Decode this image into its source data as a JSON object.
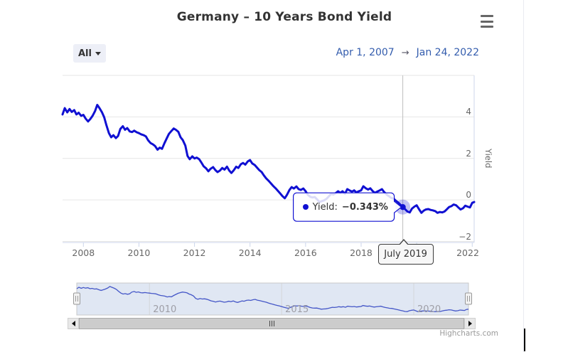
{
  "header": {
    "title": "Germany – 10 Years Bond Yield"
  },
  "range_selector": {
    "dropdown_label": "All",
    "from_date": "Apr 1, 2007",
    "arrow": "→",
    "to_date": "Jan 24, 2022"
  },
  "tooltip": {
    "label": "Yield:",
    "value": "−0.343%"
  },
  "crosshair_label": "July 2019",
  "credit": "Highcharts.com",
  "colors": {
    "series": "#1010d2",
    "nav_series": "#4456c7",
    "nav_mask": "rgba(102,133,194,0.2)",
    "grid": "#e6e6e6",
    "axis_line": "#ccd6eb",
    "crosshair": "#bfbfbf",
    "halo_opacity": "0.25",
    "tooltip_border": "#1010d2",
    "label_color": "#666666",
    "date_color": "#335cad"
  },
  "chart_data": {
    "type": "line",
    "title": "Germany – 10 Years Bond Yield",
    "series_name": "Yield",
    "legend": "off",
    "grid": "horizontal-only",
    "yaxis": {
      "title": "Yield",
      "position": "right",
      "range": [
        -2.05,
        6.0
      ],
      "gridline_values": [
        6,
        4,
        2,
        0,
        -2
      ],
      "ticks": [
        {
          "value": 4,
          "label": "4"
        },
        {
          "value": 2,
          "label": "2"
        },
        {
          "value": 0,
          "label": "0"
        },
        {
          "value": -2,
          "label": "−2"
        }
      ]
    },
    "xaxis": {
      "range_years": [
        2007.25,
        2022.07
      ],
      "tick_years": [
        2008,
        2010,
        2012,
        2014,
        2016,
        2018,
        2020,
        2022
      ],
      "tick_labels": [
        "2008",
        "2010",
        "2012",
        "2014",
        "2016",
        "2018",
        "2020",
        "2022"
      ]
    },
    "hover_point": {
      "x": 2019.5,
      "y": -0.343,
      "x_label": "July 2019",
      "value_label": "−0.343%"
    },
    "navigator": {
      "tick_years": [
        2010,
        2015,
        2020
      ],
      "labels": [
        "2010",
        "2015",
        "2020"
      ],
      "range": "all"
    },
    "x": [
      2007.25,
      2007.33,
      2007.42,
      2007.5,
      2007.58,
      2007.67,
      2007.75,
      2007.83,
      2007.92,
      2008.0,
      2008.08,
      2008.17,
      2008.25,
      2008.33,
      2008.42,
      2008.5,
      2008.58,
      2008.67,
      2008.75,
      2008.83,
      2008.92,
      2009.0,
      2009.08,
      2009.17,
      2009.25,
      2009.33,
      2009.42,
      2009.5,
      2009.58,
      2009.67,
      2009.75,
      2009.83,
      2009.92,
      2010.0,
      2010.08,
      2010.17,
      2010.25,
      2010.33,
      2010.42,
      2010.5,
      2010.58,
      2010.67,
      2010.75,
      2010.83,
      2010.92,
      2011.0,
      2011.08,
      2011.17,
      2011.25,
      2011.33,
      2011.42,
      2011.5,
      2011.58,
      2011.67,
      2011.75,
      2011.83,
      2011.92,
      2012.0,
      2012.08,
      2012.17,
      2012.25,
      2012.33,
      2012.42,
      2012.5,
      2012.58,
      2012.67,
      2012.75,
      2012.83,
      2012.92,
      2013.0,
      2013.08,
      2013.17,
      2013.25,
      2013.33,
      2013.42,
      2013.5,
      2013.58,
      2013.67,
      2013.75,
      2013.83,
      2013.92,
      2014.0,
      2014.08,
      2014.17,
      2014.25,
      2014.33,
      2014.42,
      2014.5,
      2014.58,
      2014.67,
      2014.75,
      2014.83,
      2014.92,
      2015.0,
      2015.08,
      2015.17,
      2015.25,
      2015.33,
      2015.42,
      2015.5,
      2015.58,
      2015.67,
      2015.75,
      2015.83,
      2015.92,
      2016.0,
      2016.08,
      2016.17,
      2016.25,
      2016.33,
      2016.42,
      2016.5,
      2016.58,
      2016.67,
      2016.75,
      2016.83,
      2016.92,
      2017.0,
      2017.08,
      2017.17,
      2017.25,
      2017.33,
      2017.42,
      2017.5,
      2017.58,
      2017.67,
      2017.75,
      2017.83,
      2017.92,
      2018.0,
      2018.08,
      2018.17,
      2018.25,
      2018.33,
      2018.42,
      2018.5,
      2018.58,
      2018.67,
      2018.75,
      2018.83,
      2018.92,
      2019.0,
      2019.08,
      2019.17,
      2019.25,
      2019.33,
      2019.42,
      2019.5,
      2019.58,
      2019.67,
      2019.75,
      2019.83,
      2019.92,
      2020.0,
      2020.08,
      2020.17,
      2020.25,
      2020.33,
      2020.42,
      2020.5,
      2020.58,
      2020.67,
      2020.75,
      2020.83,
      2020.92,
      2021.0,
      2021.08,
      2021.17,
      2021.25,
      2021.33,
      2021.42,
      2021.5,
      2021.58,
      2021.67,
      2021.75,
      2021.83,
      2021.92,
      2022.0,
      2022.07
    ],
    "y": [
      4.12,
      4.42,
      4.22,
      4.38,
      4.24,
      4.33,
      4.12,
      4.2,
      4.05,
      4.1,
      3.92,
      3.78,
      3.9,
      4.05,
      4.28,
      4.58,
      4.42,
      4.22,
      3.98,
      3.6,
      3.22,
      3.02,
      3.12,
      2.98,
      3.08,
      3.42,
      3.55,
      3.38,
      3.46,
      3.3,
      3.27,
      3.34,
      3.26,
      3.22,
      3.16,
      3.12,
      3.06,
      2.88,
      2.74,
      2.68,
      2.6,
      2.42,
      2.52,
      2.46,
      2.74,
      2.96,
      3.18,
      3.32,
      3.44,
      3.38,
      3.28,
      3.02,
      2.88,
      2.62,
      2.12,
      1.96,
      2.1,
      2.0,
      2.04,
      1.96,
      1.8,
      1.62,
      1.52,
      1.38,
      1.5,
      1.58,
      1.44,
      1.34,
      1.42,
      1.54,
      1.46,
      1.6,
      1.42,
      1.3,
      1.44,
      1.6,
      1.54,
      1.72,
      1.78,
      1.7,
      1.86,
      1.92,
      1.76,
      1.68,
      1.56,
      1.44,
      1.34,
      1.18,
      1.04,
      0.92,
      0.8,
      0.68,
      0.56,
      0.44,
      0.32,
      0.18,
      0.08,
      0.25,
      0.48,
      0.62,
      0.55,
      0.65,
      0.52,
      0.48,
      0.55,
      0.42,
      0.25,
      0.15,
      0.12,
      0.14,
      0.02,
      -0.1,
      -0.06,
      -0.02,
      0.05,
      0.16,
      0.3,
      0.26,
      0.32,
      0.42,
      0.34,
      0.42,
      0.3,
      0.52,
      0.46,
      0.4,
      0.46,
      0.36,
      0.42,
      0.46,
      0.66,
      0.56,
      0.5,
      0.56,
      0.42,
      0.34,
      0.4,
      0.46,
      0.52,
      0.38,
      0.26,
      0.18,
      0.1,
      0.06,
      -0.04,
      -0.12,
      -0.24,
      -0.343,
      -0.44,
      -0.56,
      -0.6,
      -0.42,
      -0.32,
      -0.26,
      -0.44,
      -0.62,
      -0.52,
      -0.46,
      -0.44,
      -0.48,
      -0.5,
      -0.54,
      -0.62,
      -0.58,
      -0.6,
      -0.56,
      -0.46,
      -0.34,
      -0.3,
      -0.22,
      -0.26,
      -0.36,
      -0.46,
      -0.4,
      -0.28,
      -0.32,
      -0.36,
      -0.14,
      -0.1
    ]
  }
}
